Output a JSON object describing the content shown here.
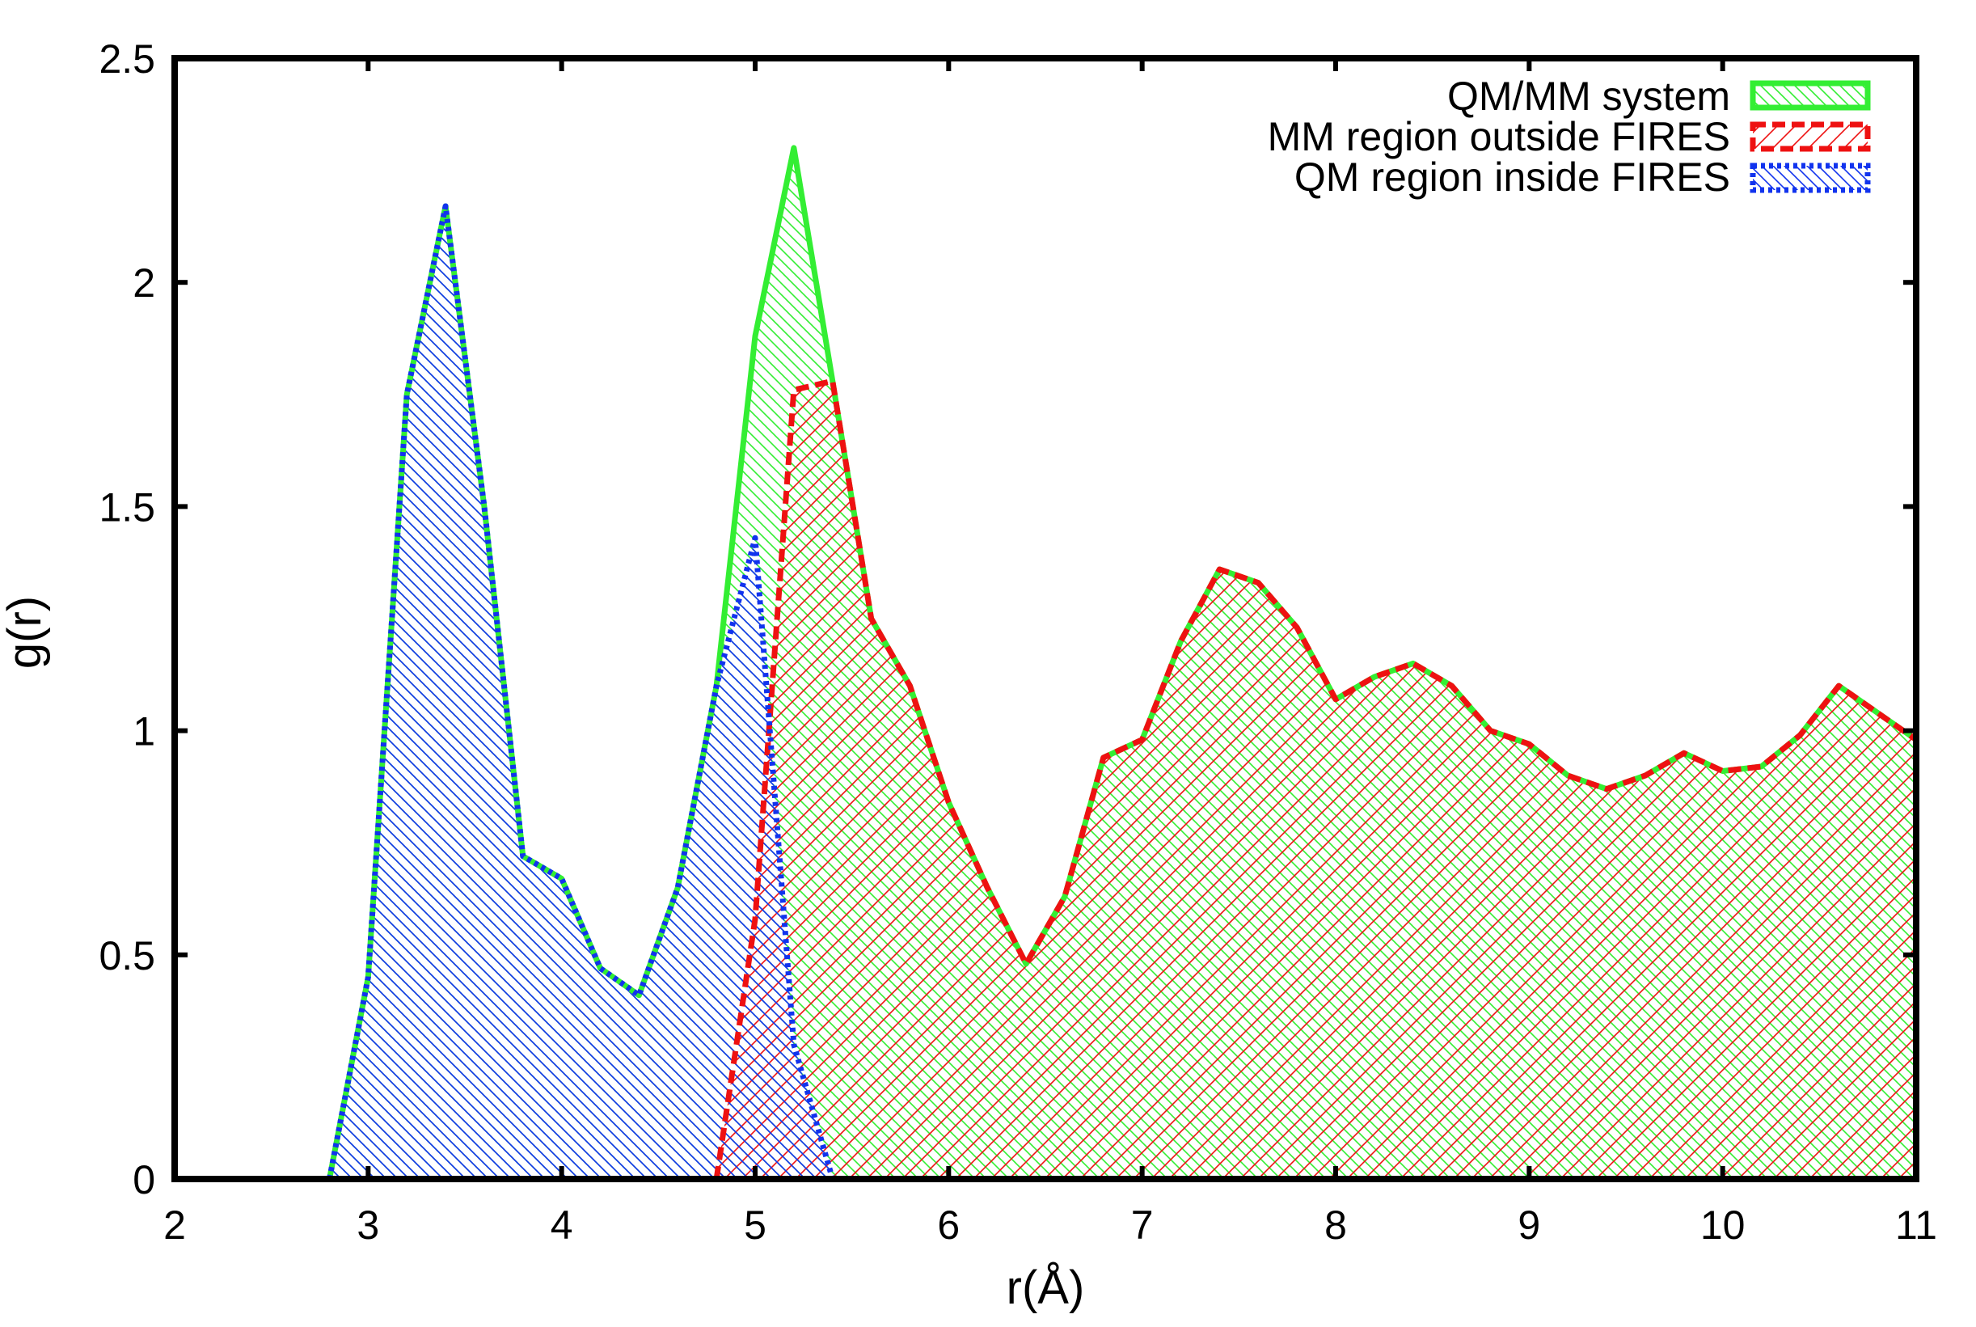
{
  "chart_data": {
    "type": "area",
    "title": "",
    "xlabel": "r(Å)",
    "ylabel": "g(r)",
    "xlim": [
      2,
      11
    ],
    "ylim": [
      0,
      2.5
    ],
    "x_ticks": [
      "2",
      "3",
      "4",
      "5",
      "6",
      "7",
      "8",
      "9",
      "10",
      "11"
    ],
    "y_ticks": [
      "0",
      "0.5",
      "1",
      "1.5",
      "2",
      "2.5"
    ],
    "grid": false,
    "legend_position": "top-right",
    "series": [
      {
        "name": "QM/MM system",
        "color": "#33ee33",
        "line_style": "solid",
        "fill_pattern": "hatch-down-right",
        "x": [
          2.8,
          3.0,
          3.2,
          3.4,
          3.6,
          3.8,
          4.0,
          4.2,
          4.4,
          4.6,
          4.8,
          5.0,
          5.2,
          5.4,
          5.6,
          5.8,
          6.0,
          6.2,
          6.4,
          6.6,
          6.8,
          7.0,
          7.2,
          7.4,
          7.6,
          7.8,
          8.0,
          8.2,
          8.4,
          8.6,
          8.8,
          9.0,
          9.2,
          9.4,
          9.6,
          9.8,
          10.0,
          10.2,
          10.4,
          10.6,
          10.8,
          11.0
        ],
        "y": [
          0.0,
          0.45,
          1.75,
          2.17,
          1.5,
          0.72,
          0.67,
          0.47,
          0.41,
          0.65,
          1.1,
          1.88,
          2.3,
          1.78,
          1.25,
          1.1,
          0.84,
          0.65,
          0.48,
          0.63,
          0.94,
          0.98,
          1.2,
          1.36,
          1.33,
          1.23,
          1.07,
          1.12,
          1.15,
          1.1,
          1.0,
          0.97,
          0.9,
          0.87,
          0.9,
          0.95,
          0.91,
          0.92,
          0.99,
          1.1,
          1.04,
          0.98
        ]
      },
      {
        "name": "MM region outside FIRES",
        "color": "#ee1111",
        "line_style": "dashed",
        "fill_pattern": "hatch-up-right",
        "x": [
          4.8,
          5.0,
          5.2,
          5.4,
          5.6,
          5.8,
          6.0,
          6.2,
          6.4,
          6.6,
          6.8,
          7.0,
          7.2,
          7.4,
          7.6,
          7.8,
          8.0,
          8.2,
          8.4,
          8.6,
          8.8,
          9.0,
          9.2,
          9.4,
          9.6,
          9.8,
          10.0,
          10.2,
          10.4,
          10.6,
          10.8,
          11.0
        ],
        "y": [
          0.0,
          0.58,
          1.76,
          1.78,
          1.25,
          1.1,
          0.84,
          0.65,
          0.48,
          0.63,
          0.94,
          0.98,
          1.2,
          1.36,
          1.33,
          1.23,
          1.07,
          1.12,
          1.15,
          1.1,
          1.0,
          0.97,
          0.9,
          0.87,
          0.9,
          0.95,
          0.91,
          0.92,
          0.99,
          1.1,
          1.04,
          0.98
        ]
      },
      {
        "name": "QM region inside FIRES",
        "color": "#1133ee",
        "line_style": "dotted",
        "fill_pattern": "hatch-down-right",
        "x": [
          2.8,
          3.0,
          3.2,
          3.4,
          3.6,
          3.8,
          4.0,
          4.2,
          4.4,
          4.6,
          4.8,
          5.0,
          5.2,
          5.4
        ],
        "y": [
          0.0,
          0.45,
          1.75,
          2.17,
          1.5,
          0.72,
          0.67,
          0.47,
          0.41,
          0.65,
          1.1,
          1.43,
          0.3,
          0.0
        ]
      }
    ]
  }
}
